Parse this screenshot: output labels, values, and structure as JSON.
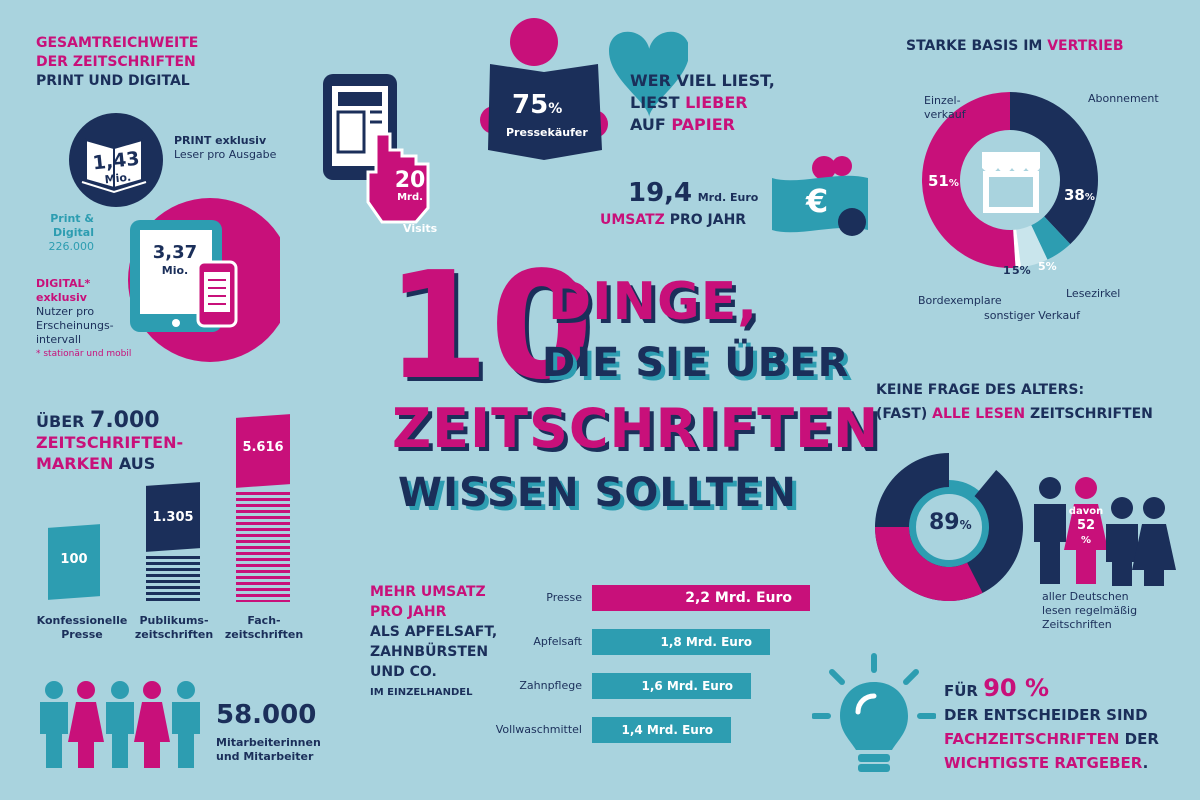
{
  "title": {
    "number": "10",
    "line1": "DINGE,",
    "line2": "DIE SIE ÜBER",
    "line3": "ZEITSCHRIFTEN",
    "line4": "WISSEN SOLLTEN"
  },
  "reach": {
    "heading1": "GESAMTREICHWEITE",
    "heading2": "DER ZEITSCHRIFTEN",
    "heading3": "PRINT UND DIGITAL",
    "print_value": "1,43",
    "print_unit": "Mio.",
    "print_label": "PRINT exklusiv",
    "print_sub": "Leser pro Ausgabe",
    "pd_label1": "Print &",
    "pd_label2": "Digital",
    "pd_value": "226.000",
    "digital_value": "3,37",
    "digital_unit": "Mio.",
    "digital_label1": "DIGITAL*",
    "digital_label2": "exklusiv",
    "digital_sub1": "Nutzer pro",
    "digital_sub2": "Erscheinungs-",
    "digital_sub3": "intervall",
    "footnote": "* stationär und mobil"
  },
  "visits": {
    "value": "20",
    "unit": "Mrd.",
    "label": "Visits"
  },
  "reading": {
    "percent": "75",
    "percent_sign": "%",
    "label": "Pressekäufer",
    "line1": "WER VIEL LIEST,",
    "line2a": "LIEST ",
    "line2b": "LIEBER",
    "line3a": "AUF ",
    "line3b": "PAPIER"
  },
  "revenue": {
    "value": "19,4",
    "unit": "Mrd. Euro",
    "label_a": "UMSATZ",
    "label_b": " PRO JAHR",
    "currency_symbol": "€"
  },
  "sales": {
    "heading_a": "STARKE BASIS IM ",
    "heading_b": "VERTRIEB",
    "slices": [
      {
        "name": "Einzel-verkauf",
        "label1": "Einzel-",
        "label2": "verkauf",
        "value": 51,
        "display": "51",
        "color": "#c8107a"
      },
      {
        "name": "Abonnement",
        "label1": "Abonnement",
        "value": 38,
        "display": "38",
        "color": "#1b2f5a"
      },
      {
        "name": "Lesezirkel",
        "label1": "Lesezirkel",
        "value": 5,
        "display": "5",
        "color": "#2d9db1"
      },
      {
        "name": "sonstiger Verkauf",
        "label1": "sonstiger Verkauf",
        "value": 5,
        "display": "5",
        "color": "#c9e5ec"
      },
      {
        "name": "Bordexemplare",
        "label1": "Bordexemplare",
        "value": 1,
        "display": "1",
        "color": "#ffffff"
      }
    ],
    "pct": "%"
  },
  "brands": {
    "line1a": "ÜBER ",
    "line1b": "7.000",
    "line2": "ZEITSCHRIFTEN-",
    "line3a": "MARKEN",
    "line3b": " AUS",
    "items": [
      {
        "value": "100",
        "label1": "Konfessionelle",
        "label2": "Presse"
      },
      {
        "value": "1.305",
        "label1": "Publikums-",
        "label2": "zeitschriften"
      },
      {
        "value": "5.616",
        "label1": "Fach-",
        "label2": "zeitschriften"
      }
    ]
  },
  "employees": {
    "value": "58.000",
    "label1": "Mitarbeiterinnen",
    "label2": "und Mitarbeiter"
  },
  "comparison": {
    "heading1": "MEHR UMSATZ",
    "heading2": "PRO JAHR",
    "heading3": "ALS APFELSAFT,",
    "heading4": "ZAHNBÜRSTEN",
    "heading5": "UND CO.",
    "heading6": "IM EINZELHANDEL",
    "bars": [
      {
        "label": "Presse",
        "value": 2.2,
        "text": "2,2 Mrd. Euro",
        "color": "#c8107a"
      },
      {
        "label": "Apfelsaft",
        "value": 1.8,
        "text": "1,8 Mrd. Euro",
        "color": "#2d9db1"
      },
      {
        "label": "Zahnpflege",
        "value": 1.6,
        "text": "1,6 Mrd. Euro",
        "color": "#2d9db1"
      },
      {
        "label": "Vollwaschmittel",
        "value": 1.4,
        "text": "1,4 Mrd. Euro",
        "color": "#2d9db1"
      }
    ]
  },
  "age": {
    "heading1": "KEINE FRAGE DES ALTERS:",
    "heading2a": "(FAST) ",
    "heading2b": "ALLE LESEN",
    "heading2c": " ZEITSCHRIFTEN",
    "percent": "89",
    "percent_value": 89,
    "pct": "%",
    "davon": "davon",
    "sub_percent": "52",
    "sub_pct": "%",
    "caption1": "aller Deutschen",
    "caption2": "lesen regelmäßig",
    "caption3": "Zeitschriften"
  },
  "decision": {
    "line1a": "FÜR ",
    "line1b": "90 %",
    "line2": "DER ENTSCHEIDER SIND",
    "line3a": "FACHZEITSCHRIFTEN",
    "line3b": " DER",
    "line4a": "WICHTIGSTE RATGEBER",
    "line4b": "."
  },
  "colors": {
    "background": "#a9d3de",
    "navy": "#1b2f5a",
    "pink": "#c8107a",
    "teal": "#2d9db1"
  }
}
